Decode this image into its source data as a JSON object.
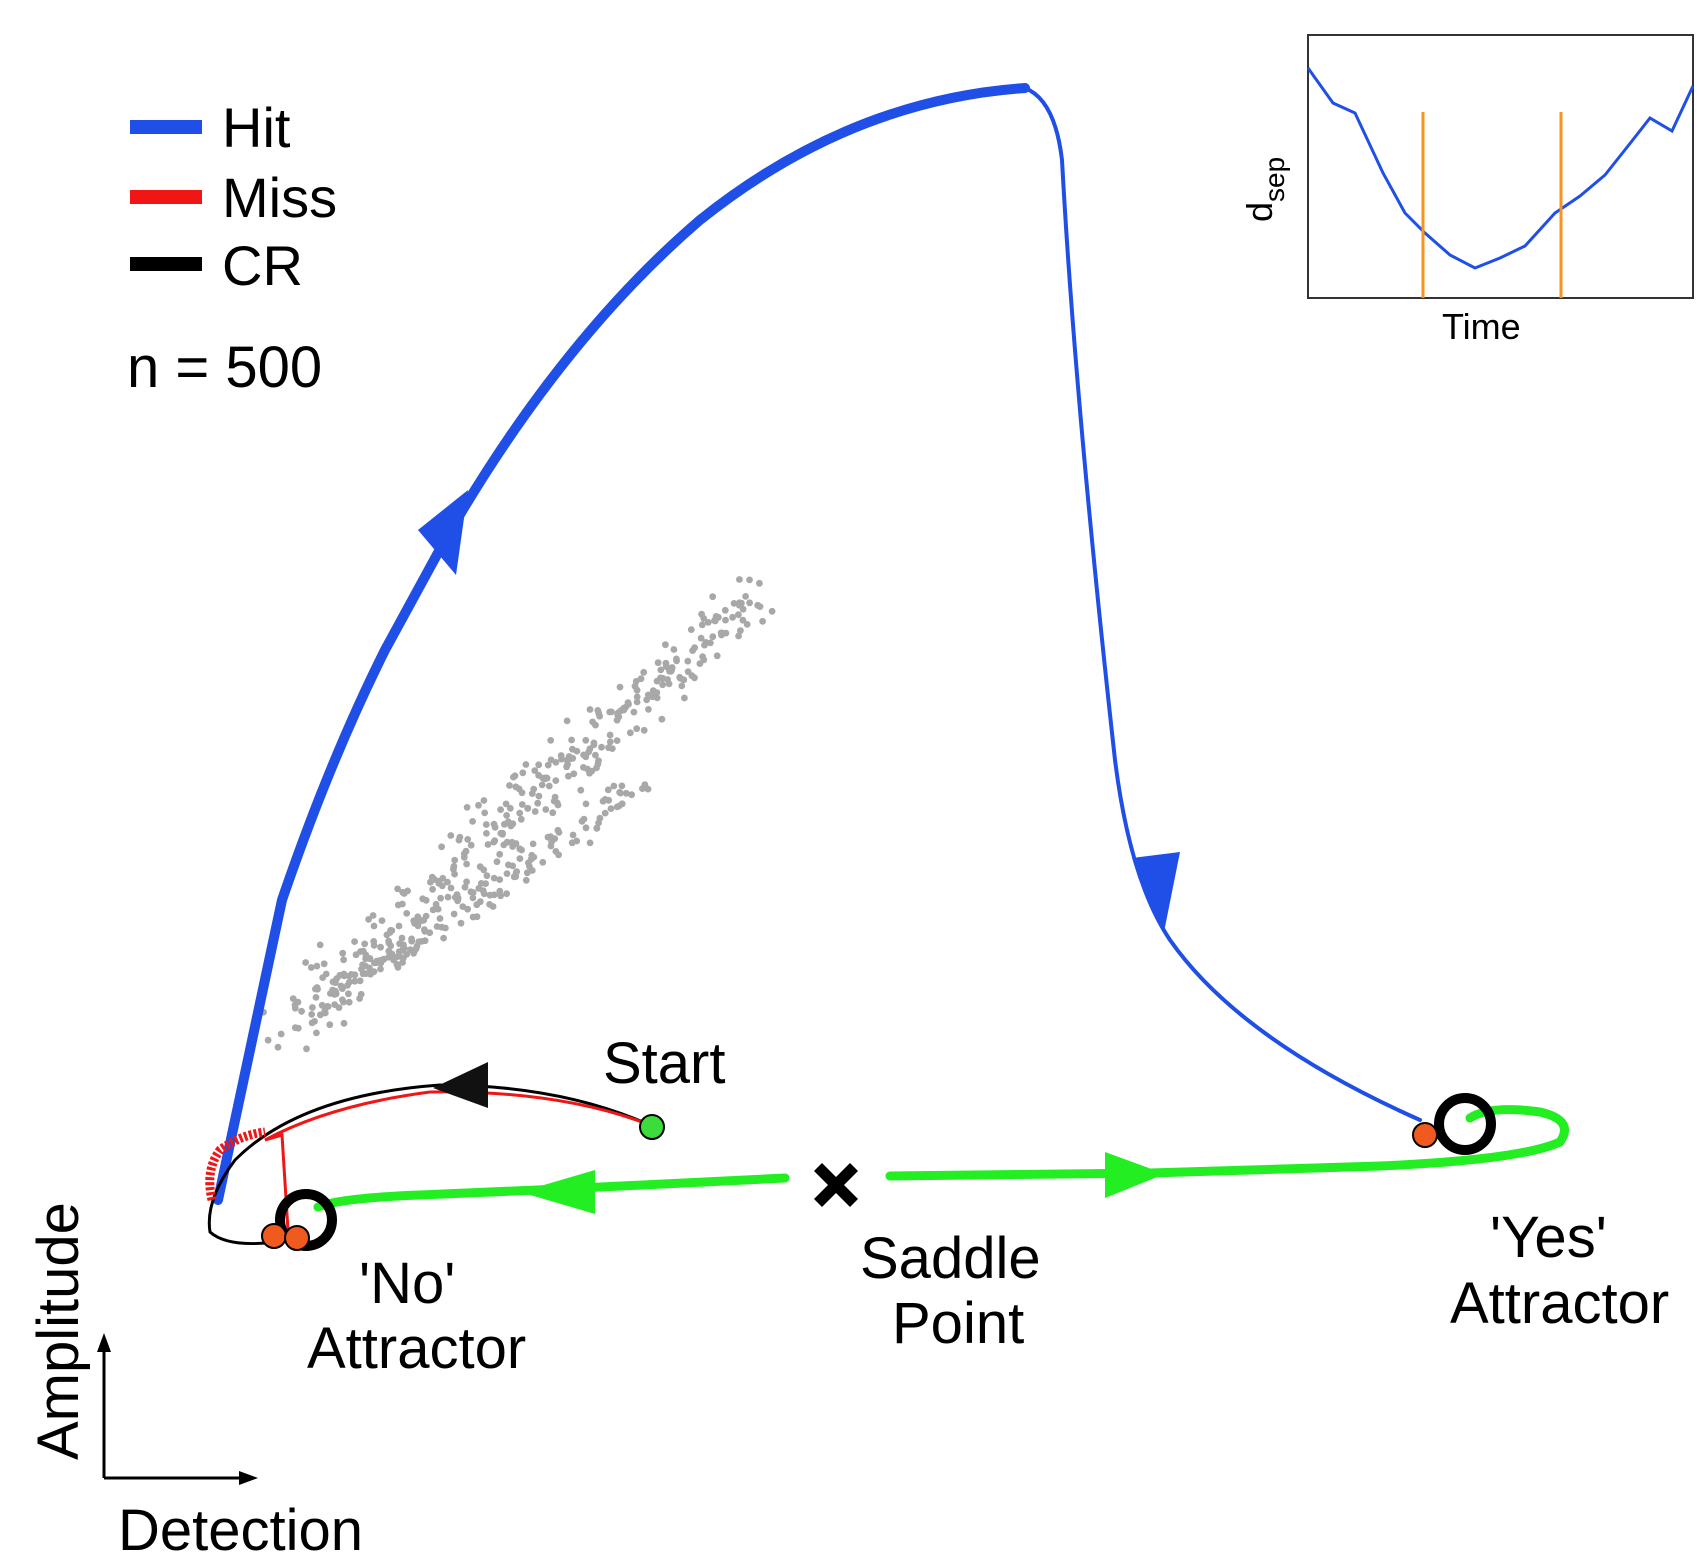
{
  "legend": {
    "items": [
      {
        "label": "Hit",
        "color": "#1f4fe6"
      },
      {
        "label": "Miss",
        "color": "#f01616"
      },
      {
        "label": "CR",
        "color": "#000000"
      }
    ],
    "count_text": "n = 500"
  },
  "labels": {
    "start": "Start",
    "saddle_line1": "Saddle",
    "saddle_line2": "Point",
    "no_line1": "'No'",
    "no_line2": "Attractor",
    "yes_line1": "'Yes'",
    "yes_line2": "Attractor"
  },
  "axes": {
    "y_label": "Amplitude",
    "x_label": "Detection"
  },
  "inset": {
    "y_label_main": "d",
    "y_label_sub": "sep",
    "x_label": "Time",
    "line_color": "#1f4fe6",
    "marker_color": "#f7941d"
  },
  "colors": {
    "hit": "#1f4fe6",
    "miss": "#f01616",
    "cr": "#000000",
    "manifold": "#22ee22",
    "scatter": "#a8a8a8",
    "start_point": "#3ddc3d",
    "end_point": "#f05a1e"
  }
}
